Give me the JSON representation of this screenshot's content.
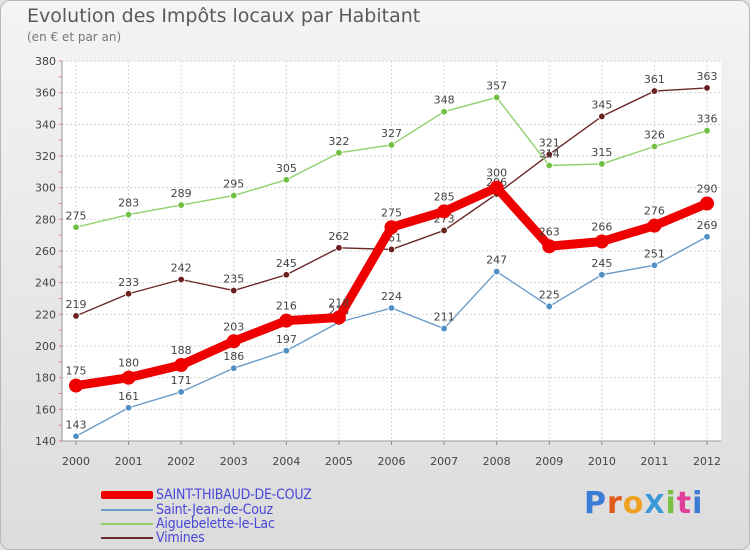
{
  "header": {
    "title": "Evolution des Impôts locaux par Habitant",
    "subtitle": "(en € et par an)"
  },
  "chart_data": {
    "type": "line",
    "title": "Evolution des Impôts locaux par Habitant",
    "subtitle": "(en € et par an)",
    "xlabel": "",
    "ylabel": "",
    "x": [
      "2000",
      "2001",
      "2002",
      "2003",
      "2004",
      "2005",
      "2006",
      "2007",
      "2008",
      "2009",
      "2010",
      "2011",
      "2012"
    ],
    "ylim": [
      140,
      380
    ],
    "yticks": [
      140,
      160,
      180,
      200,
      220,
      240,
      260,
      280,
      300,
      320,
      340,
      360,
      380
    ],
    "grid": true,
    "legend_position": "bottom-left",
    "series": [
      {
        "name": "Vimines",
        "color": "#6b2a2a",
        "values": [
          219,
          233,
          242,
          235,
          245,
          262,
          261,
          273,
          296,
          321,
          345,
          361,
          363
        ]
      },
      {
        "name": "Saint-Jean-de-Couz",
        "color": "#6b9bc8",
        "values": [
          143,
          161,
          171,
          186,
          197,
          215,
          224,
          211,
          247,
          225,
          245,
          251,
          269
        ]
      },
      {
        "name": "Aiguebelette-le-Lac",
        "color": "#8fd06a",
        "values": [
          275,
          283,
          289,
          295,
          305,
          322,
          327,
          348,
          357,
          314,
          315,
          326,
          336
        ]
      },
      {
        "name": "SAINT-THIBAUD-DE-COUZ",
        "color": "#ee0000",
        "values": [
          175,
          180,
          188,
          203,
          216,
          218,
          275,
          285,
          300,
          263,
          266,
          276,
          290
        ]
      }
    ]
  },
  "legend": {
    "items": [
      {
        "label": "SAINT-THIBAUD-DE-COUZ",
        "color": "#ee0000"
      },
      {
        "label": "Saint-Jean-de-Couz",
        "color": "#6b9bc8"
      },
      {
        "label": "Aiguebelette-le-Lac",
        "color": "#8fd06a"
      },
      {
        "label": "Vimines",
        "color": "#6b2a2a"
      }
    ]
  },
  "logo": {
    "text": "ProXiti"
  }
}
